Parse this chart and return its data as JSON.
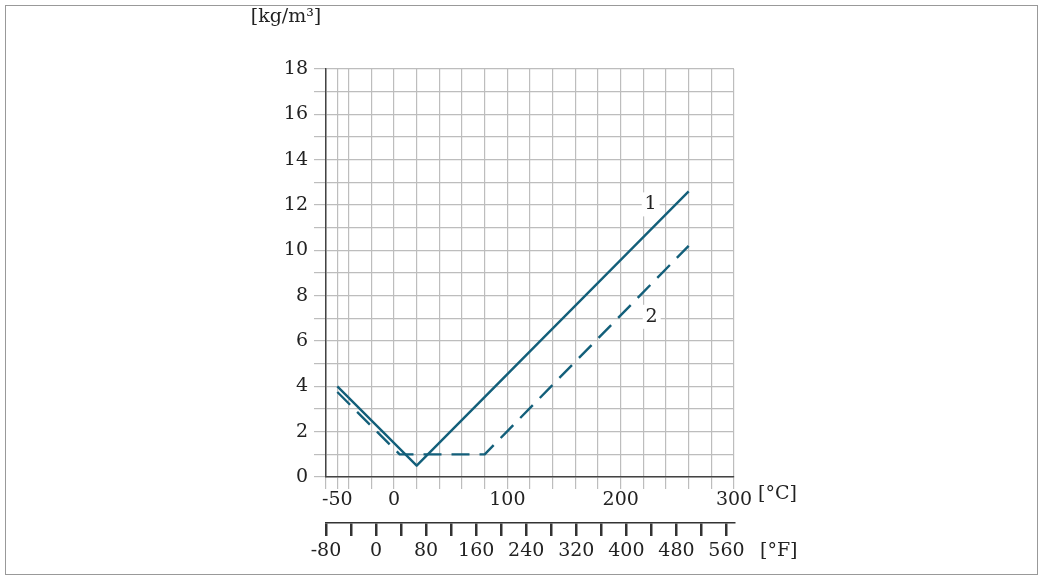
{
  "chart_data": {
    "type": "line",
    "ylabel": "[kg/m³]",
    "xlabel": "[°C]",
    "x2label": "[°F]",
    "series": [
      {
        "name": "1",
        "color": "#135f7a",
        "line_style": "solid",
        "x": [
          -50,
          20,
          260
        ],
        "values": [
          4,
          0.5,
          12.6
        ]
      },
      {
        "name": "2",
        "color": "#135f7a",
        "line_style": "dashed",
        "x": [
          -50,
          5,
          80,
          260
        ],
        "values": [
          3.75,
          1,
          1,
          10.2
        ]
      }
    ],
    "xlim": [
      -60,
      300
    ],
    "xticks": [
      {
        "value": -60,
        "label": null
      },
      -50,
      {
        "value": -40,
        "label": null
      },
      {
        "value": -20,
        "label": null
      },
      0,
      {
        "value": 20,
        "label": null
      },
      {
        "value": 40,
        "label": null
      },
      {
        "value": 60,
        "label": null
      },
      {
        "value": 80,
        "label": null
      },
      100,
      {
        "value": 120,
        "label": null
      },
      {
        "value": 140,
        "label": null
      },
      {
        "value": 160,
        "label": null
      },
      {
        "value": 180,
        "label": null
      },
      200,
      {
        "value": 220,
        "label": null
      },
      {
        "value": 240,
        "label": null
      },
      {
        "value": 260,
        "label": null
      },
      {
        "value": 280,
        "label": null
      },
      300
    ],
    "x2lim": [
      -80,
      572
    ],
    "x2ticks": [
      -80,
      0,
      80,
      160,
      240,
      320,
      400,
      480,
      560
    ],
    "ylim": [
      0,
      18
    ],
    "yticks": [
      0,
      {
        "value": 1,
        "label": null
      },
      2,
      {
        "value": 3,
        "label": null
      },
      4,
      {
        "value": 5,
        "label": null
      },
      6,
      {
        "value": 7,
        "label": null
      },
      8,
      {
        "value": 9,
        "label": null
      },
      10,
      {
        "value": 11,
        "label": null
      },
      12,
      {
        "value": 13,
        "label": null
      },
      14,
      {
        "value": 15,
        "label": null
      },
      16,
      {
        "value": 17,
        "label": null
      },
      18
    ],
    "grid": true,
    "legend": false,
    "marker": "none"
  }
}
